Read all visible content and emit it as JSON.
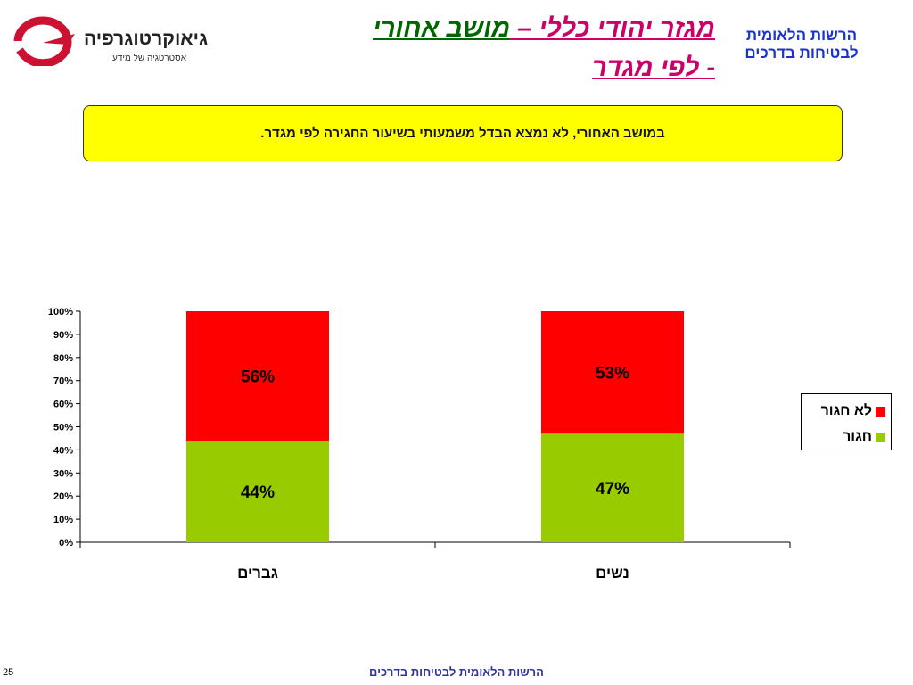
{
  "logo": {
    "name": "גיאוקרטוגרפיה",
    "tagline": "אסטרטגיה של מידע"
  },
  "title": {
    "part1": "מגזר יהודי כללי – ",
    "part2": "מושב אחורי",
    "part3": "- לפי מגדר"
  },
  "authority": {
    "line1": "הרשות הלאומית",
    "line2": "לבטיחות בדרכים"
  },
  "note": "במושב האחורי, לא נמצא הבדל משמעותי בשיעור החגירה לפי מגדר.",
  "colors": {
    "not_buckled": "#ff0000",
    "buckled": "#99cc00",
    "title_pink": "#cc0066",
    "title_green": "#006600",
    "authority_blue": "#1a33cc",
    "note_yellow": "#ffff00"
  },
  "chart_data": {
    "type": "bar",
    "stacked": true,
    "categories": [
      "גברים",
      "נשים"
    ],
    "series": [
      {
        "name": "חגור",
        "values": [
          44,
          47
        ],
        "labels": [
          "44%",
          "47%"
        ],
        "color": "#99cc00"
      },
      {
        "name": "לא חגור",
        "values": [
          56,
          53
        ],
        "labels": [
          "56%",
          "53%"
        ],
        "color": "#ff0000"
      }
    ],
    "ylim": [
      0,
      100
    ],
    "yticks": [
      "0%",
      "10%",
      "20%",
      "30%",
      "40%",
      "50%",
      "60%",
      "70%",
      "80%",
      "90%",
      "100%"
    ],
    "grid": false,
    "legend": "right"
  },
  "legend": [
    {
      "label": "לא חגור",
      "color": "#ff0000"
    },
    {
      "label": "חגור",
      "color": "#99cc00"
    }
  ],
  "footer": {
    "page": "25",
    "text": "הרשות הלאומית לבטיחות בדרכים"
  }
}
